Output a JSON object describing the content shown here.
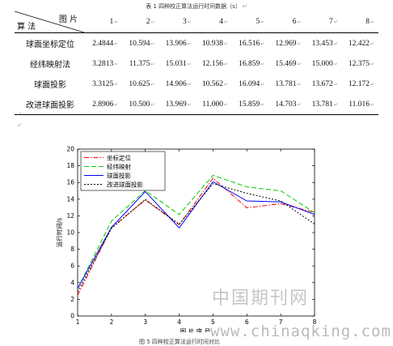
{
  "caption": "表 1  四种校正算法运行时间数据（s）",
  "para_mark": "↵",
  "table": {
    "corner_top": "图  片",
    "corner_bottom": "算  法",
    "columns": [
      "1",
      "2",
      "3",
      "4",
      "5",
      "6",
      "7",
      "8"
    ],
    "rows": [
      {
        "name": "球面坐标定位",
        "values": [
          "2.4844",
          "10.594",
          "13.906",
          "10.938",
          "16.516",
          "12.969",
          "13.453",
          "12.422"
        ]
      },
      {
        "name": "经纬映射法",
        "values": [
          "3.2813",
          "11.375",
          "15.031",
          "12.156",
          "16.859",
          "15.469",
          "15.000",
          "12.375"
        ]
      },
      {
        "name": "球面投影",
        "values": [
          "3.3125",
          "10.625",
          "14.906",
          "10.562",
          "16.094",
          "13.781",
          "13.672",
          "12.172"
        ]
      },
      {
        "name": "改进球面投影",
        "values": [
          "2.8906",
          "10.500",
          "13.969",
          "11.000",
          "15.859",
          "14.703",
          "13.781",
          "11.016"
        ]
      }
    ]
  },
  "chart_data": {
    "type": "line",
    "x": [
      1,
      2,
      3,
      4,
      5,
      6,
      7,
      8
    ],
    "xlabel": "图片序号",
    "ylabel": "运行时间/s",
    "xlim": [
      1,
      8
    ],
    "ylim": [
      0,
      20
    ],
    "xticks": [
      "1",
      "2",
      "3",
      "4",
      "5",
      "6",
      "7",
      "8"
    ],
    "yticks": [
      "0",
      "2",
      "4",
      "6",
      "8",
      "10",
      "12",
      "14",
      "16",
      "18",
      "20"
    ],
    "legend_position": "top-left",
    "grid": false,
    "series": [
      {
        "name": "坐标定位",
        "color": "#ff0000",
        "style": "dashdot",
        "values": [
          2.4844,
          10.594,
          13.906,
          10.938,
          16.516,
          12.969,
          13.453,
          12.422
        ]
      },
      {
        "name": "经纬映射",
        "color": "#00cc00",
        "style": "dashed",
        "values": [
          3.2813,
          11.375,
          15.031,
          12.156,
          16.859,
          15.469,
          15.0,
          12.375
        ]
      },
      {
        "name": "球面投影",
        "color": "#0000ff",
        "style": "solid",
        "values": [
          3.3125,
          10.625,
          14.906,
          10.562,
          16.094,
          13.781,
          13.672,
          12.172
        ]
      },
      {
        "name": "改进球面投影",
        "color": "#000000",
        "style": "dotted",
        "values": [
          2.8906,
          10.5,
          13.969,
          11.0,
          15.859,
          14.703,
          13.781,
          11.016
        ]
      }
    ]
  },
  "watermark_cn": "中国期刊网",
  "watermark_url": "www.chinaqking.com",
  "figure_caption": "图 5 四种校正算法运行时间对比"
}
